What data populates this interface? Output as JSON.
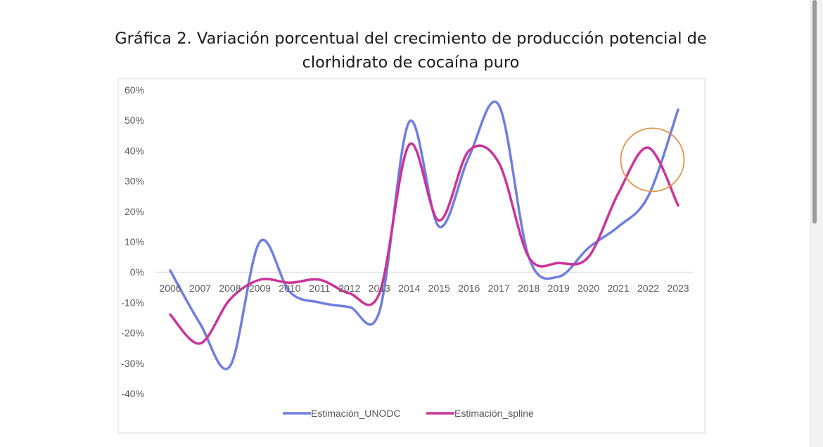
{
  "chart_data": {
    "type": "line",
    "title": "Gráfica 2. Variación porcentual del crecimiento de producción potencial de clorhidrato de cocaína puro",
    "title_lines": [
      "Gráfica 2. Variación porcentual del crecimiento de producción potencial de",
      "clorhidrato de cocaína puro"
    ],
    "x": [
      "2006",
      "2007",
      "2008",
      "2009",
      "2010",
      "2011",
      "2012",
      "2013",
      "2014",
      "2015",
      "2016",
      "2017",
      "2018",
      "2019",
      "2020",
      "2021",
      "2022",
      "2023"
    ],
    "series": [
      {
        "name": "Estimación_UNODC",
        "color": "#6f7ee0",
        "values": [
          0.5,
          -17,
          -31,
          10,
          -6.5,
          -10,
          -11.5,
          -13,
          49.5,
          15,
          38,
          55,
          5,
          -1.5,
          8,
          15,
          25,
          53.5
        ]
      },
      {
        "name": "Estimación_spline",
        "color": "#cc3399",
        "values": [
          -14,
          -23.5,
          -9,
          -2.5,
          -3.5,
          -2.5,
          -7,
          -7,
          42,
          17,
          40,
          36,
          5,
          3,
          5,
          26,
          41,
          22
        ]
      }
    ],
    "ylim": [
      -40,
      60
    ],
    "yticks": [
      60,
      50,
      40,
      30,
      20,
      10,
      0,
      -10,
      -20,
      -30,
      -40
    ],
    "ytick_labels": [
      "60%",
      "50%",
      "40%",
      "30%",
      "20%",
      "10%",
      "0%",
      "-10%",
      "-20%",
      "-30%",
      "-40%"
    ],
    "xlabel": "",
    "ylabel": "",
    "grid": false,
    "legend_position": "bottom",
    "annotation": {
      "shape": "circle",
      "x": "2022",
      "y": 37,
      "color": "#e0954a"
    }
  }
}
